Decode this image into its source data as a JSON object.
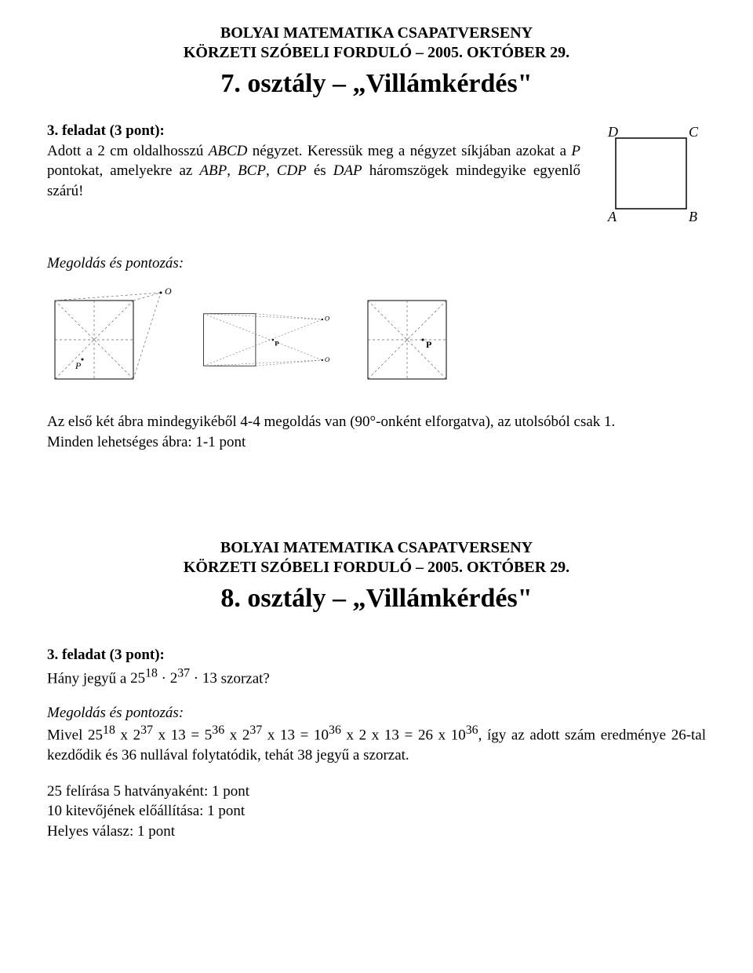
{
  "header": {
    "line1": "BOLYAI MATEMATIKA CSAPATVERSENY",
    "line2": "KÖRZETI SZÓBELI FORDULÓ – 2005. OKTÓBER 29."
  },
  "section1": {
    "grade_title": "7. osztály – „Villámkérdés\"",
    "task_label": "3. feladat (3 pont):",
    "task_line1_a": "Adott a 2 cm oldalhosszú ",
    "task_line1_b": "ABCD",
    "task_line1_c": " négyzet.",
    "task_line2_a": "Keressük meg a négyzet síkjában azokat a ",
    "task_line2_b": "P",
    "task_line2_c": " pontokat, amelyekre az ",
    "task_line2_d": "ABP",
    "task_line2_e": ", ",
    "task_line2_f": "BCP",
    "task_line2_g": ", ",
    "task_line2_h": "CDP",
    "task_line2_i": " és ",
    "task_line2_j": "DAP",
    "task_line2_k": " háromszögek mindegyike egyenlő szárú!",
    "solution_heading": "Megoldás és pontozás:",
    "solution_text_1": "Az első két ábra mindegyikéből 4-4 megoldás van (90°-onként elforgatva), az utolsóból csak 1.",
    "solution_text_2": "Minden lehetséges ábra: 1-1 pont",
    "square": {
      "labels": {
        "D": "D",
        "C": "C",
        "A": "A",
        "B": "B"
      },
      "stroke": "#000000",
      "stroke_width": 1.5,
      "font_size": 18,
      "font_style": "italic"
    },
    "figures": {
      "stroke": "#666666",
      "square_stroke": "#000000",
      "point_label_font": 12,
      "dash": "3,3",
      "fig1": {
        "P_label": "P",
        "O_label": "O"
      },
      "fig2": {
        "P_label": "P",
        "O_top": "O",
        "O_bot": "O"
      },
      "fig3": {
        "P_label": "P"
      }
    }
  },
  "section2": {
    "grade_title": "8. osztály – „Villámkérdés\"",
    "task_label": "3. feladat (3 pont):",
    "task_text_a": "Hány jegyű a ",
    "task_text_b_html": "25<sup>18</sup> · 2<sup>37</sup> · 13",
    "task_text_c": " szorzat?",
    "solution_heading": "Megoldás és pontozás:",
    "solution_text_html": "Mivel 25<sup>18</sup> x 2<sup>37</sup> x 13 = 5<sup>36</sup> x 2<sup>37</sup> x 13 = 10<sup>36</sup> x 2 x 13 = 26 x 10<sup>36</sup>, így az adott szám eredménye 26-tal kezdődik és 36 nullával folytatódik, tehát 38 jegyű a szorzat.",
    "scoring_1": "25 felírása 5 hatványaként: 1 pont",
    "scoring_2": "10 kitevőjének előállítása: 1 pont",
    "scoring_3": "Helyes válasz: 1 pont"
  }
}
